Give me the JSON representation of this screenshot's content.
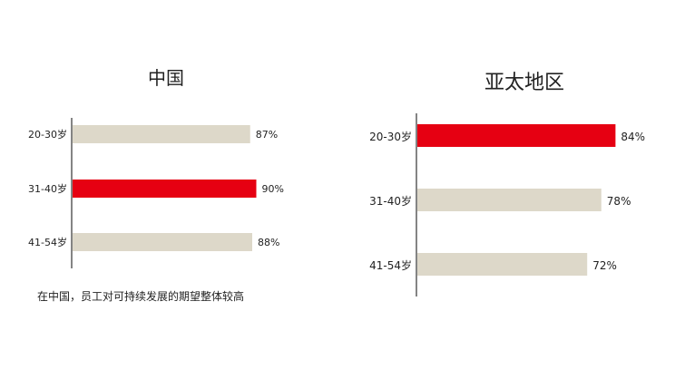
{
  "chart_data": [
    {
      "type": "bar",
      "orientation": "horizontal",
      "title": "中国",
      "categories": [
        "20-30岁",
        "31-40岁",
        "41-54岁"
      ],
      "values": [
        87,
        90,
        88
      ],
      "value_labels": [
        "87%",
        "90%",
        "88%"
      ],
      "highlight_index": 1,
      "colors": {
        "default": "#ddd8c9",
        "highlight": "#e60012"
      },
      "caption": "在中国，员工对可持续发展的期望整体较高"
    },
    {
      "type": "bar",
      "orientation": "horizontal",
      "title": "亚太地区",
      "categories": [
        "20-30岁",
        "31-40岁",
        "41-54岁"
      ],
      "values": [
        84,
        78,
        72
      ],
      "value_labels": [
        "84%",
        "78%",
        "72%"
      ],
      "highlight_index": 0,
      "colors": {
        "default": "#ddd8c9",
        "highlight": "#e60012"
      }
    }
  ]
}
